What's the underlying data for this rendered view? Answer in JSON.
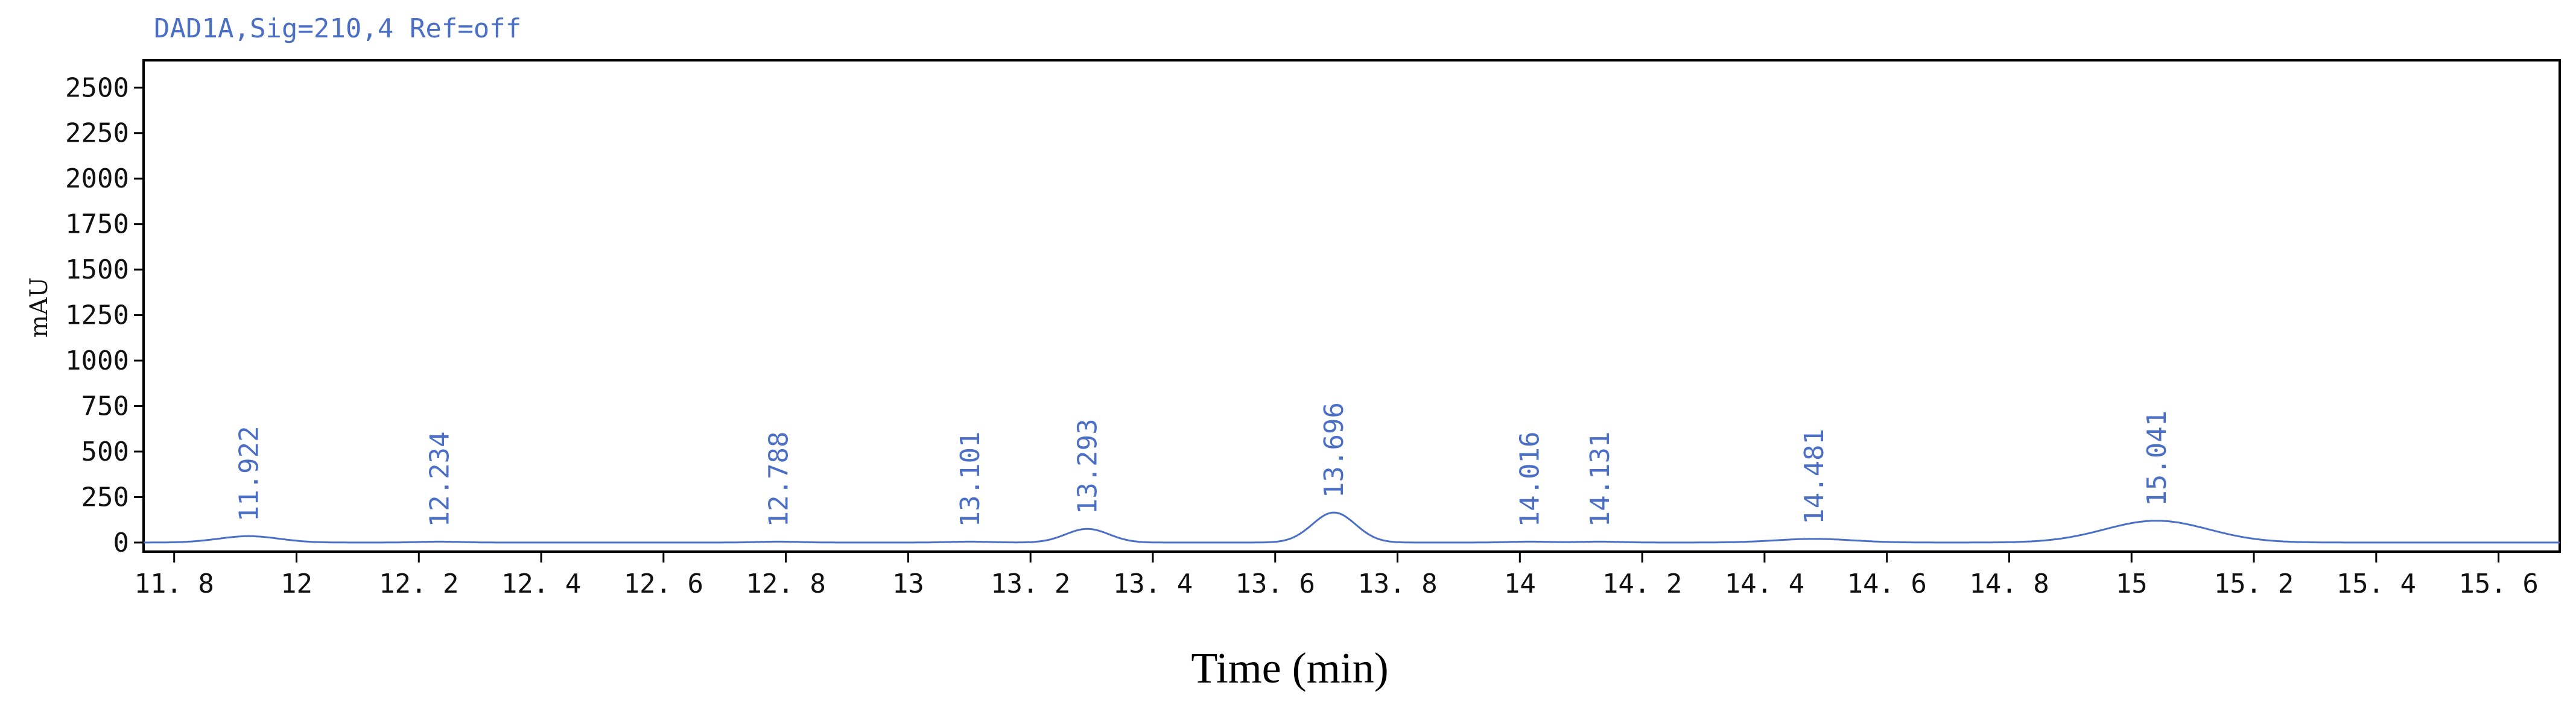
{
  "chart_data": {
    "type": "line",
    "signal_title": "DAD1A,Sig=210,4  Ref=off",
    "xlabel": "Time (min)",
    "ylabel": "mAU",
    "xlim": [
      11.75,
      15.7
    ],
    "ylim": [
      -50,
      2650
    ],
    "x_ticks": [
      11.8,
      12,
      12.2,
      12.4,
      12.6,
      12.8,
      13,
      13.2,
      13.4,
      13.6,
      13.8,
      14,
      14.2,
      14.4,
      14.6,
      14.8,
      15,
      15.2,
      15.4,
      15.6
    ],
    "x_tick_labels": [
      "11. 8",
      "12",
      "12. 2",
      "12. 4",
      "12. 6",
      "12. 8",
      "13",
      "13. 2",
      "13. 4",
      "13. 6",
      "13. 8",
      "14",
      "14. 2",
      "14. 4",
      "14. 6",
      "14. 8",
      "15",
      "15. 2",
      "15. 4",
      "15. 6"
    ],
    "y_ticks": [
      0,
      250,
      500,
      750,
      1000,
      1250,
      1500,
      1750,
      2000,
      2250,
      2500
    ],
    "y_tick_labels": [
      "0",
      "250",
      "500",
      "750",
      "1000",
      "1250",
      "1500",
      "1750",
      "2000",
      "2250",
      "2500"
    ],
    "baseline": 0,
    "peaks": [
      {
        "rt": 11.922,
        "label": "11.922",
        "height": 35,
        "width": 0.07
      },
      {
        "rt": 12.234,
        "label": "12.234",
        "height": 5,
        "width": 0.05
      },
      {
        "rt": 12.788,
        "label": "12.788",
        "height": 5,
        "width": 0.05
      },
      {
        "rt": 13.101,
        "label": "13.101",
        "height": 5,
        "width": 0.05
      },
      {
        "rt": 13.293,
        "label": "13.293",
        "height": 75,
        "width": 0.05
      },
      {
        "rt": 13.696,
        "label": "13.696",
        "height": 165,
        "width": 0.05
      },
      {
        "rt": 14.016,
        "label": "14.016",
        "height": 5,
        "width": 0.05
      },
      {
        "rt": 14.131,
        "label": "14.131",
        "height": 5,
        "width": 0.05
      },
      {
        "rt": 14.481,
        "label": "14.481",
        "height": 20,
        "width": 0.09
      },
      {
        "rt": 15.041,
        "label": "15.041",
        "height": 120,
        "width": 0.12
      }
    ],
    "grid": false,
    "legend": "none",
    "colors": {
      "trace": "#4a6fc4",
      "axis": "#000000",
      "text": "#111111"
    }
  }
}
